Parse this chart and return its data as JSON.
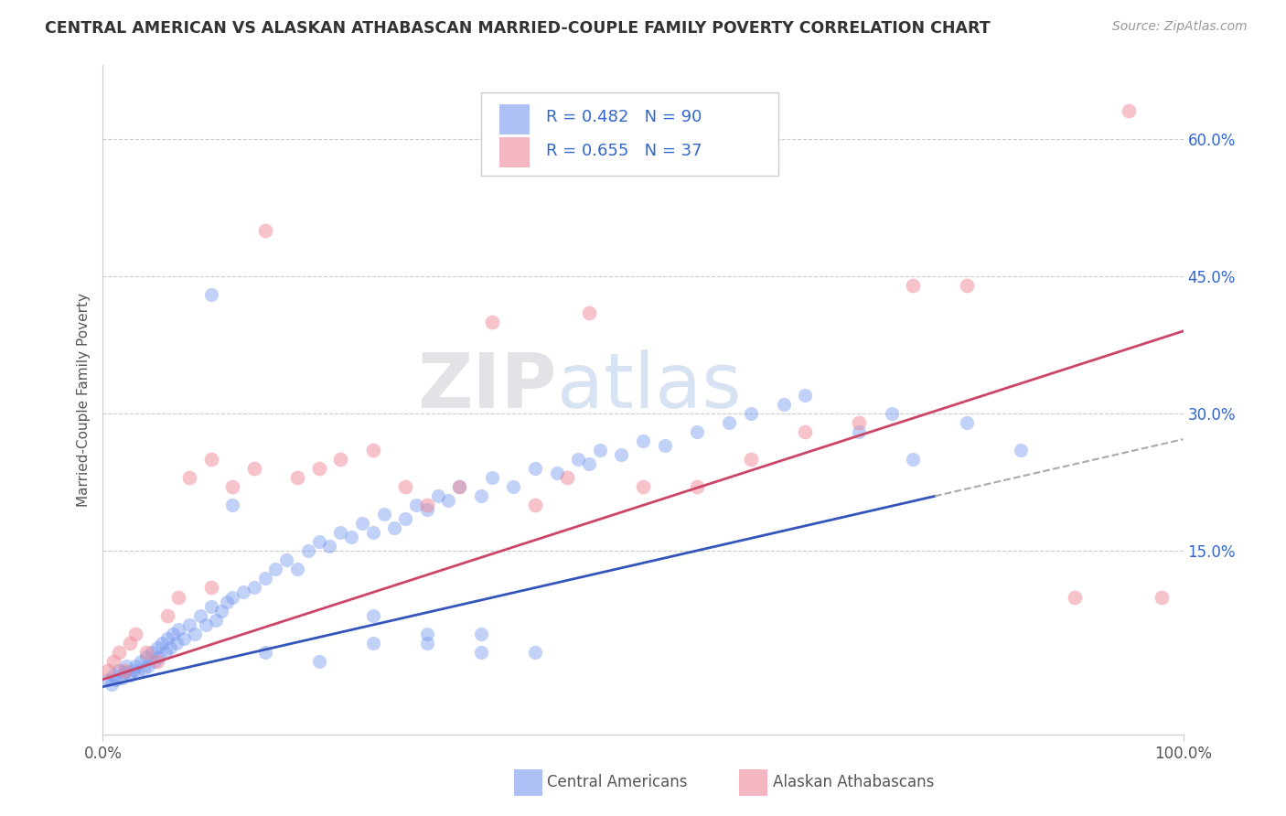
{
  "title": "CENTRAL AMERICAN VS ALASKAN ATHABASCAN MARRIED-COUPLE FAMILY POVERTY CORRELATION CHART",
  "source": "Source: ZipAtlas.com",
  "ylabel": "Married-Couple Family Poverty",
  "xlim": [
    0.0,
    1.0
  ],
  "ylim": [
    -0.05,
    0.68
  ],
  "x_tick_labels": [
    "0.0%",
    "100.0%"
  ],
  "y_tick_labels": [
    "15.0%",
    "30.0%",
    "45.0%",
    "60.0%"
  ],
  "y_tick_positions": [
    0.15,
    0.3,
    0.45,
    0.6
  ],
  "blue_color": "#7799ee",
  "pink_color": "#ee8899",
  "blue_line_color": "#3355bb",
  "pink_line_color": "#cc4466",
  "blue_line_slope": 0.27,
  "blue_line_intercept": 0.002,
  "pink_line_slope": 0.38,
  "pink_line_intercept": 0.01,
  "blue_scatter_x": [
    0.005,
    0.008,
    0.01,
    0.012,
    0.015,
    0.018,
    0.02,
    0.022,
    0.025,
    0.028,
    0.03,
    0.032,
    0.035,
    0.038,
    0.04,
    0.042,
    0.045,
    0.048,
    0.05,
    0.052,
    0.055,
    0.058,
    0.06,
    0.062,
    0.065,
    0.068,
    0.07,
    0.075,
    0.08,
    0.085,
    0.09,
    0.095,
    0.1,
    0.105,
    0.11,
    0.115,
    0.12,
    0.13,
    0.14,
    0.15,
    0.16,
    0.17,
    0.18,
    0.19,
    0.2,
    0.21,
    0.22,
    0.23,
    0.24,
    0.25,
    0.26,
    0.27,
    0.28,
    0.29,
    0.3,
    0.31,
    0.32,
    0.33,
    0.35,
    0.36,
    0.38,
    0.4,
    0.42,
    0.44,
    0.45,
    0.46,
    0.48,
    0.5,
    0.52,
    0.55,
    0.58,
    0.6,
    0.63,
    0.65,
    0.7,
    0.73,
    0.75,
    0.8,
    0.85,
    0.25,
    0.3,
    0.35,
    0.4,
    0.15,
    0.2,
    0.25,
    0.3,
    0.35,
    0.1,
    0.12
  ],
  "blue_scatter_y": [
    0.01,
    0.005,
    0.015,
    0.01,
    0.02,
    0.012,
    0.018,
    0.025,
    0.015,
    0.02,
    0.025,
    0.018,
    0.03,
    0.022,
    0.035,
    0.025,
    0.04,
    0.03,
    0.045,
    0.035,
    0.05,
    0.04,
    0.055,
    0.045,
    0.06,
    0.05,
    0.065,
    0.055,
    0.07,
    0.06,
    0.08,
    0.07,
    0.09,
    0.075,
    0.085,
    0.095,
    0.1,
    0.105,
    0.11,
    0.12,
    0.13,
    0.14,
    0.13,
    0.15,
    0.16,
    0.155,
    0.17,
    0.165,
    0.18,
    0.17,
    0.19,
    0.175,
    0.185,
    0.2,
    0.195,
    0.21,
    0.205,
    0.22,
    0.21,
    0.23,
    0.22,
    0.24,
    0.235,
    0.25,
    0.245,
    0.26,
    0.255,
    0.27,
    0.265,
    0.28,
    0.29,
    0.3,
    0.31,
    0.32,
    0.28,
    0.3,
    0.25,
    0.29,
    0.26,
    0.08,
    0.05,
    0.06,
    0.04,
    0.04,
    0.03,
    0.05,
    0.06,
    0.04,
    0.43,
    0.2
  ],
  "pink_scatter_x": [
    0.005,
    0.01,
    0.015,
    0.02,
    0.025,
    0.03,
    0.04,
    0.05,
    0.06,
    0.07,
    0.08,
    0.1,
    0.12,
    0.14,
    0.15,
    0.18,
    0.2,
    0.22,
    0.25,
    0.28,
    0.3,
    0.33,
    0.36,
    0.4,
    0.43,
    0.45,
    0.5,
    0.55,
    0.6,
    0.65,
    0.7,
    0.75,
    0.8,
    0.9,
    0.95,
    0.98,
    0.1
  ],
  "pink_scatter_y": [
    0.02,
    0.03,
    0.04,
    0.02,
    0.05,
    0.06,
    0.04,
    0.03,
    0.08,
    0.1,
    0.23,
    0.25,
    0.22,
    0.24,
    0.5,
    0.23,
    0.24,
    0.25,
    0.26,
    0.22,
    0.2,
    0.22,
    0.4,
    0.2,
    0.23,
    0.41,
    0.22,
    0.22,
    0.25,
    0.28,
    0.29,
    0.44,
    0.44,
    0.1,
    0.63,
    0.1,
    0.11
  ]
}
